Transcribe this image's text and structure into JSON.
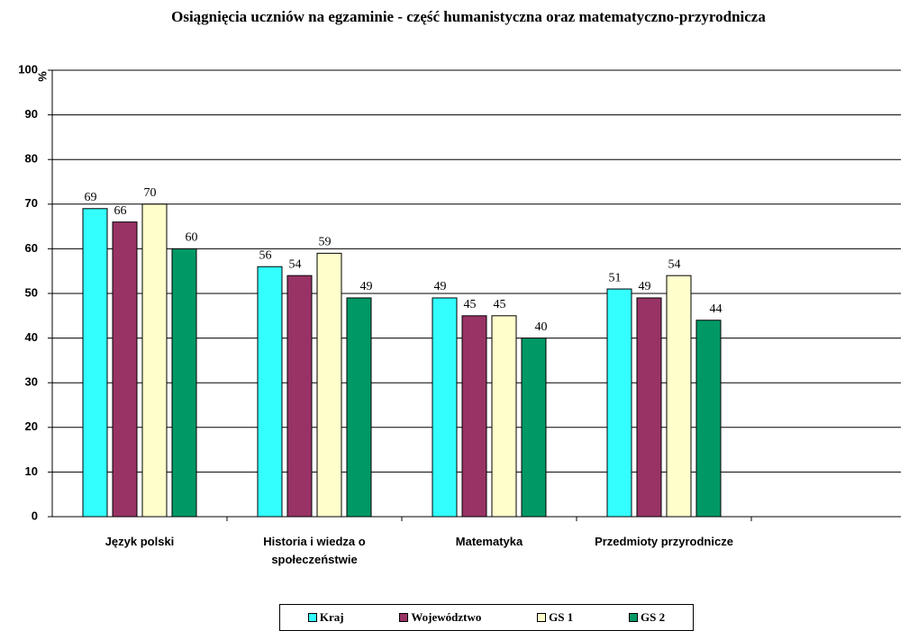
{
  "chart_data": {
    "type": "bar",
    "title": "Osiągnięcia uczniów na egzaminie - część humanistyczna oraz matematyczno-przyrodnicza",
    "y_label": "%",
    "categories": [
      "Język polski",
      "Historia i wiedza o społeczeństwie",
      "Matematyka",
      "Przedmioty przyrodnicze"
    ],
    "series": [
      {
        "name": "Kraj",
        "color": "#33ffff",
        "values": [
          69,
          56,
          49,
          51
        ]
      },
      {
        "name": "Województwo",
        "color": "#993366",
        "values": [
          66,
          54,
          45,
          49
        ]
      },
      {
        "name": "GS 1",
        "color": "#ffffcc",
        "values": [
          70,
          59,
          45,
          54
        ]
      },
      {
        "name": "GS 2",
        "color": "#009966",
        "values": [
          60,
          49,
          40,
          44
        ]
      }
    ],
    "ylim": [
      0,
      100
    ],
    "yticks": [
      0,
      10,
      20,
      30,
      40,
      50,
      60,
      70,
      80,
      90,
      100
    ],
    "grid": true
  }
}
